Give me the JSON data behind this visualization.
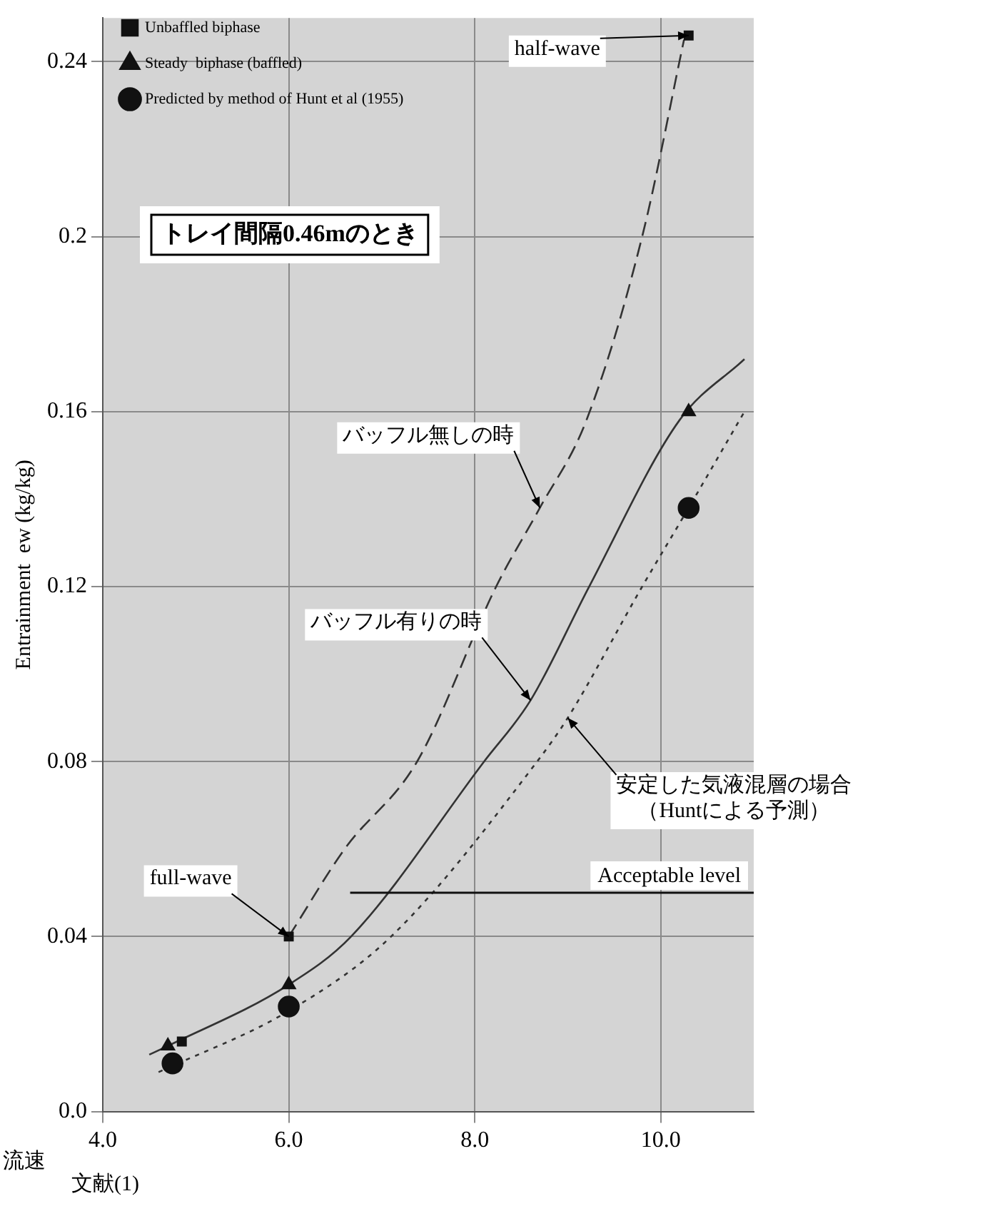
{
  "chart_data": {
    "type": "scatter",
    "title": "トレイ間隔0.46mのとき",
    "ylabel": "Entrainment  ew (kg/kg)",
    "xlim": [
      4.0,
      11.0
    ],
    "xticks": [
      {
        "value": 4,
        "label": "4.0"
      },
      {
        "value": 6,
        "label": "6.0"
      },
      {
        "value": 8,
        "label": "8.0"
      },
      {
        "value": 10,
        "label": "10.0"
      }
    ],
    "ylim": [
      0,
      0.25
    ],
    "yticks": [
      {
        "value": 0,
        "label": "0.0"
      },
      0.04,
      0.08,
      0.12,
      0.16,
      0.2,
      0.24
    ],
    "grid": true,
    "legend": "top left",
    "series": [
      {
        "name": "Unbaffled biphase",
        "marker": "square",
        "color": "#111111",
        "x": [
          4.85,
          6.0,
          10.3
        ],
        "values": [
          0.016,
          0.04,
          0.246
        ]
      },
      {
        "name": "Steady  biphase (baffled)",
        "marker": "triangle",
        "color": "#111111",
        "x": [
          4.7,
          6.0,
          10.3
        ],
        "values": [
          0.015,
          0.029,
          0.16
        ]
      },
      {
        "name": "Predicted by method of Hunt et al (1955)",
        "marker": "circle",
        "color": "#111111",
        "x": [
          4.75,
          6.0,
          10.3
        ],
        "values": [
          0.011,
          0.024,
          0.138
        ]
      },
      {
        "type": "line",
        "marker": "none",
        "line_style": "dashed",
        "color": "#333333",
        "x": [
          6.0,
          6.6,
          7.38,
          8.23,
          8.7,
          9.2,
          9.8,
          10.25
        ],
        "values": [
          0.04,
          0.06,
          0.08,
          0.12,
          0.138,
          0.158,
          0.2,
          0.245
        ]
      },
      {
        "type": "line",
        "marker": "none",
        "line_style": "solid",
        "color": "#333333",
        "x": [
          4.5,
          4.7,
          6.0,
          6.67,
          8.1,
          8.6,
          9.23,
          10.2,
          10.9
        ],
        "values": [
          0.013,
          0.015,
          0.029,
          0.04,
          0.08,
          0.094,
          0.12,
          0.158,
          0.172
        ]
      },
      {
        "type": "line",
        "marker": "none",
        "line_style": "dotted",
        "color": "#333333",
        "x": [
          4.6,
          6.0,
          7.1,
          8.67,
          9.0,
          9.8,
          10.3,
          10.9
        ],
        "values": [
          0.009,
          0.023,
          0.04,
          0.08,
          0.09,
          0.12,
          0.138,
          0.16
        ]
      }
    ],
    "ref_lines": [
      {
        "axis": "y",
        "value": 0.05,
        "label": "Acceptable level",
        "color": "#111111"
      }
    ],
    "annotations": [
      {
        "text": "half-wave",
        "x": 10.3,
        "y": 0.246
      },
      {
        "text": "full-wave",
        "x": 6.0,
        "y": 0.04
      },
      {
        "text": "バッフル無しの時",
        "x": 8.7,
        "y": 0.138
      },
      {
        "text": "バッフル有りの時",
        "x": 8.6,
        "y": 0.094
      },
      {
        "text": "安定した気液混層の場合（Huntによる予測）",
        "x": 9.0,
        "y": 0.09
      },
      "流速",
      "文献(1)"
    ]
  }
}
